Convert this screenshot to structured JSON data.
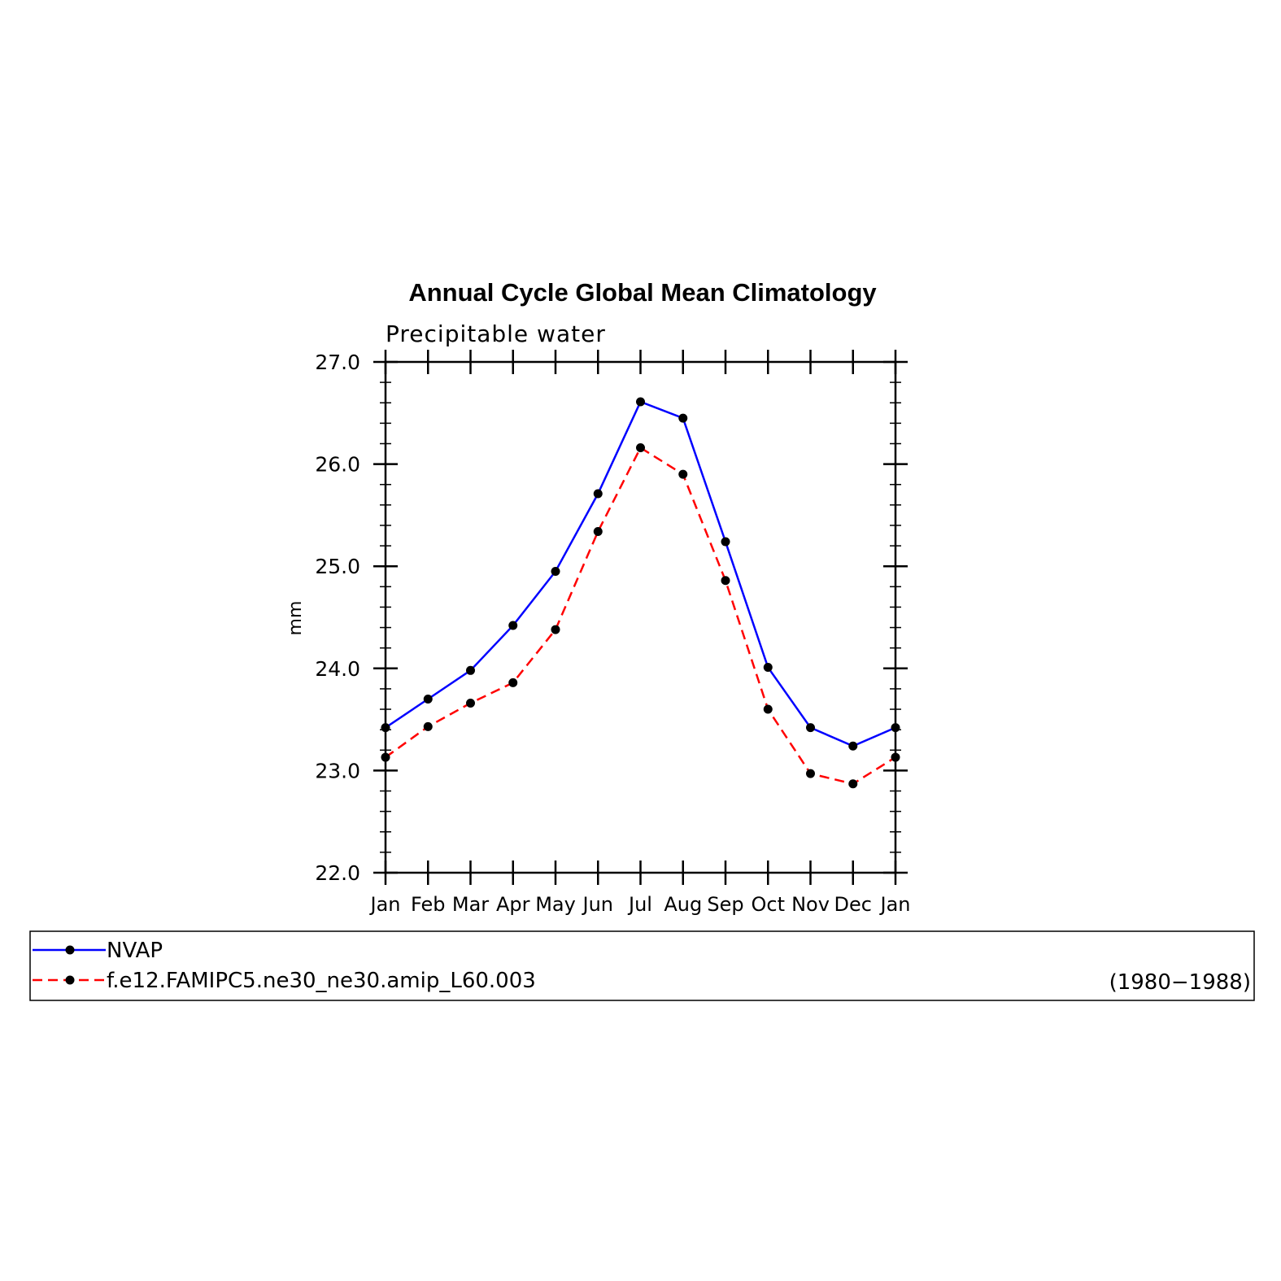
{
  "chart_data": {
    "type": "line",
    "title": "Annual Cycle Global Mean Climatology",
    "subtitle": "Precipitable water",
    "xlabel": "",
    "ylabel": "mm",
    "categories": [
      "Jan",
      "Feb",
      "Mar",
      "Apr",
      "May",
      "Jun",
      "Jul",
      "Aug",
      "Sep",
      "Oct",
      "Nov",
      "Dec",
      "Jan"
    ],
    "ylim": [
      22.0,
      27.0
    ],
    "yticks": [
      "22.0",
      "23.0",
      "24.0",
      "25.0",
      "26.0",
      "27.0"
    ],
    "grid": false,
    "legend_position": "bottom",
    "series": [
      {
        "name": "NVAP",
        "color": "#0000ff",
        "dash": "solid",
        "marker": "circle",
        "values": [
          23.42,
          23.7,
          23.98,
          24.42,
          24.95,
          25.71,
          26.61,
          26.45,
          25.24,
          24.01,
          23.42,
          23.24,
          23.42
        ]
      },
      {
        "name": "f.e12.FAMIPC5.ne30_ne30.amip_L60.003",
        "color": "#ff0000",
        "dash": "dashed",
        "marker": "circle",
        "values": [
          23.13,
          23.43,
          23.66,
          23.86,
          24.38,
          25.34,
          26.16,
          25.9,
          24.86,
          23.6,
          22.97,
          22.87,
          23.13
        ]
      }
    ],
    "legend_note": "(1980−1988)"
  }
}
